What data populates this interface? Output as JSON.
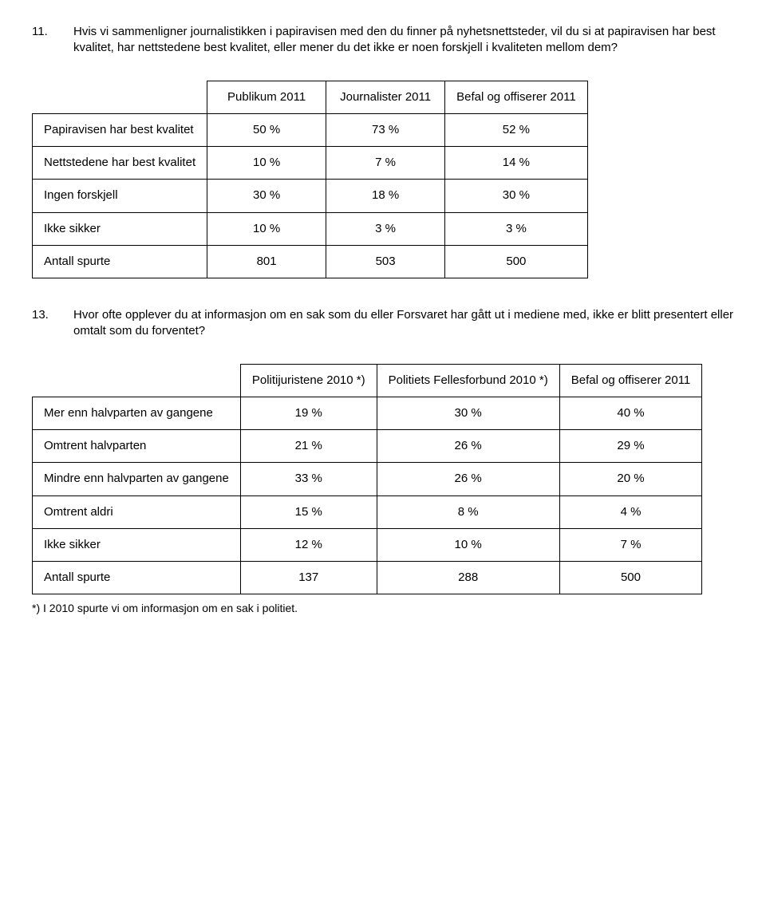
{
  "q11": {
    "number": "11.",
    "text": "Hvis vi sammenligner journalistikken i papiravisen med den du finner på nyhetsnettsteder, vil du si at papiravisen har best kvalitet, har nettstedene best kvalitet, eller mener du det ikke er noen forskjell i kvaliteten mellom dem?"
  },
  "table1": {
    "col1": "Publikum 2011",
    "col2": "Journalister 2011",
    "col3": "Befal og offiserer 2011",
    "rows": [
      {
        "label": "Papiravisen har best kvalitet",
        "v": [
          "50 %",
          "73 %",
          "52 %"
        ]
      },
      {
        "label": "Nettstedene har best kvalitet",
        "v": [
          "10 %",
          "7 %",
          "14 %"
        ]
      },
      {
        "label": "Ingen forskjell",
        "v": [
          "30 %",
          "18 %",
          "30 %"
        ]
      },
      {
        "label": "Ikke sikker",
        "v": [
          "10 %",
          "3 %",
          "3 %"
        ]
      },
      {
        "label": "Antall spurte",
        "v": [
          "801",
          "503",
          "500"
        ]
      }
    ]
  },
  "q13": {
    "number": "13.",
    "text": "Hvor ofte opplever du at informasjon om en sak som du eller Forsvaret har gått ut i mediene med, ikke er blitt presentert eller omtalt som du forventet?"
  },
  "table2": {
    "col1": "Politijuristene 2010 *)",
    "col2": "Politiets Fellesforbund 2010 *)",
    "col3": "Befal og offiserer 2011",
    "rows": [
      {
        "label": "Mer enn halvparten av gangene",
        "v": [
          "19 %",
          "30 %",
          "40 %"
        ]
      },
      {
        "label": "Omtrent halvparten",
        "v": [
          "21 %",
          "26 %",
          "29 %"
        ]
      },
      {
        "label": "Mindre enn halvparten av gangene",
        "v": [
          "33 %",
          "26 %",
          "20 %"
        ]
      },
      {
        "label": "Omtrent aldri",
        "v": [
          "15 %",
          "8 %",
          "4 %"
        ]
      },
      {
        "label": "Ikke sikker",
        "v": [
          "12 %",
          "10 %",
          "7 %"
        ]
      },
      {
        "label": "Antall spurte",
        "v": [
          "137",
          "288",
          "500"
        ]
      }
    ]
  },
  "footnote": "*) I 2010 spurte vi om informasjon om en sak i politiet."
}
